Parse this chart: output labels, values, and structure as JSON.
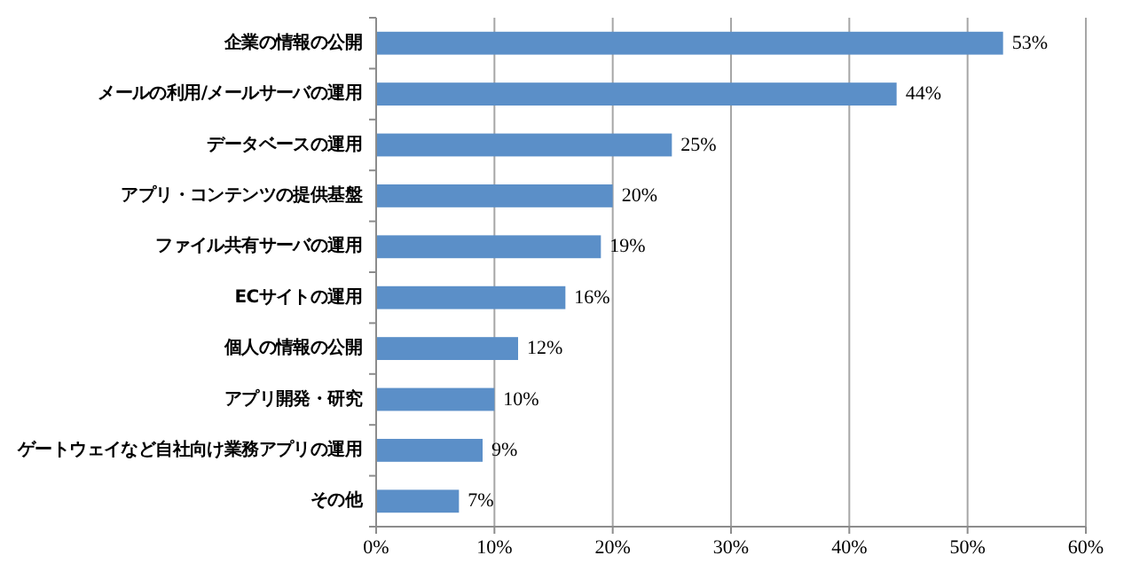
{
  "chart_data": {
    "type": "bar",
    "orientation": "horizontal",
    "categories": [
      "企業の情報の公開",
      "メールの利用/メールサーバの運用",
      "データベースの運用",
      "アプリ・コンテンツの提供基盤",
      "ファイル共有サーバの運用",
      "ECサイトの運用",
      "個人の情報の公開",
      "アプリ開発・研究",
      "ゲートウェイなど自社向け業務アプリの運用",
      "その他"
    ],
    "values": [
      53,
      44,
      25,
      20,
      19,
      16,
      12,
      10,
      9,
      7
    ],
    "value_labels": [
      "53%",
      "44%",
      "25%",
      "20%",
      "19%",
      "16%",
      "12%",
      "10%",
      "9%",
      "7%"
    ],
    "color": "#5b8fc8",
    "xlim": [
      0,
      60
    ],
    "xticks": [
      {
        "value": 0,
        "label": "0%"
      },
      {
        "value": 10,
        "label": "10%"
      },
      {
        "value": 20,
        "label": "20%"
      },
      {
        "value": 30,
        "label": "30%"
      },
      {
        "value": 40,
        "label": "40%"
      },
      {
        "value": 50,
        "label": "50%"
      },
      {
        "value": 60,
        "label": "60%"
      }
    ],
    "grid": "x"
  }
}
